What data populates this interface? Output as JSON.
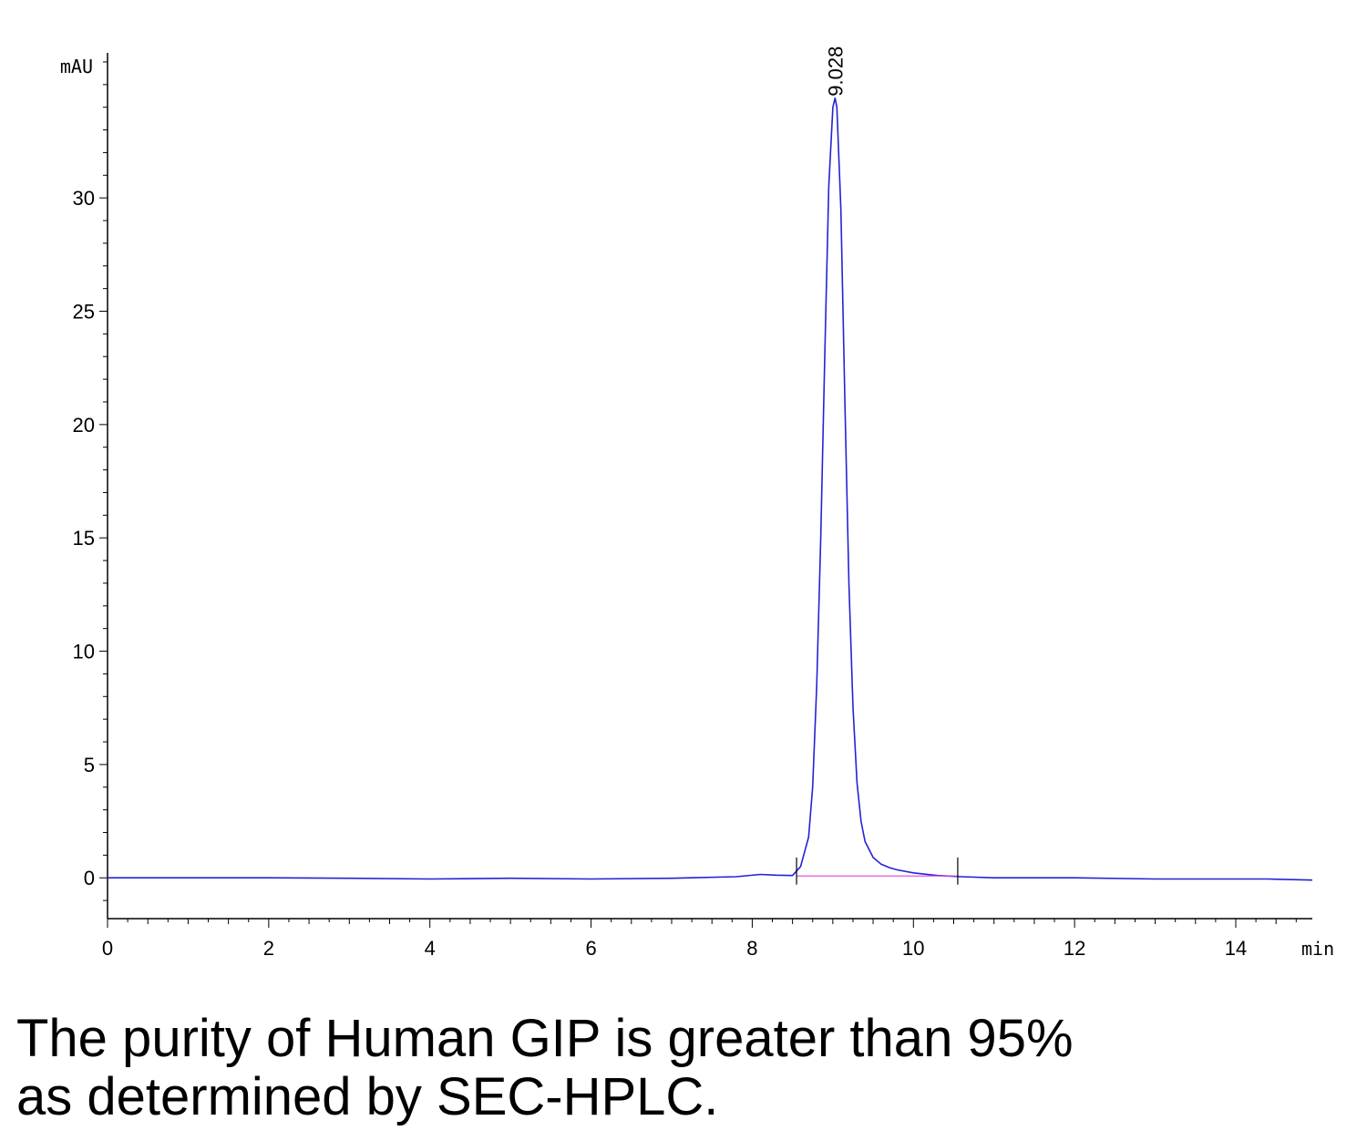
{
  "chart_data": {
    "type": "line",
    "title": "",
    "xlabel": "min",
    "ylabel": "mAU",
    "xlim": [
      0,
      14.95
    ],
    "ylim": [
      -1.8,
      36.4
    ],
    "x_ticks": [
      0,
      2,
      4,
      6,
      8,
      10,
      12,
      14
    ],
    "x_tick_labels": [
      "0",
      "2",
      "4",
      "6",
      "8",
      "10",
      "12",
      "14"
    ],
    "y_ticks": [
      0,
      5,
      10,
      15,
      20,
      25,
      30
    ],
    "y_tick_labels": [
      "0",
      "5",
      "10",
      "15",
      "20",
      "25",
      "30"
    ],
    "grid": false,
    "series": [
      {
        "color": "#2323d6",
        "x": [
          0,
          1,
          2,
          3,
          4,
          5,
          6,
          7,
          7.8,
          8.1,
          8.3,
          8.5,
          8.6,
          8.7,
          8.75,
          8.8,
          8.85,
          8.9,
          8.95,
          9.0,
          9.028,
          9.05,
          9.1,
          9.15,
          9.2,
          9.25,
          9.3,
          9.35,
          9.4,
          9.5,
          9.6,
          9.7,
          9.8,
          10.0,
          10.3,
          10.6,
          11,
          12,
          13,
          14,
          14.4,
          14.95
        ],
        "y": [
          0.0,
          0.0,
          0.0,
          -0.02,
          -0.05,
          -0.02,
          -0.05,
          -0.02,
          0.05,
          0.15,
          0.12,
          0.1,
          0.5,
          1.8,
          4.0,
          8.5,
          15.0,
          23.0,
          30.5,
          34.0,
          34.4,
          34.0,
          29.5,
          21.0,
          13.0,
          7.5,
          4.2,
          2.5,
          1.6,
          0.9,
          0.6,
          0.45,
          0.35,
          0.22,
          0.1,
          0.05,
          0.0,
          0.0,
          -0.05,
          -0.05,
          -0.05,
          -0.1
        ]
      },
      {
        "name": "baseline",
        "color": "#e040e0",
        "x": [
          8.55,
          10.55
        ],
        "y": [
          0.08,
          0.08
        ]
      }
    ],
    "annotations": [
      {
        "text": "9.028",
        "x": 9.028,
        "y": 34.4
      }
    ],
    "integration_markers_x": [
      8.55,
      10.55
    ]
  },
  "caption": {
    "line1": "The purity of Human GIP is greater than 95%",
    "line2": "as determined by SEC-HPLC."
  },
  "colors": {
    "trace": "#2323d6",
    "baseline": "#e040e0",
    "axis": "#000000"
  }
}
